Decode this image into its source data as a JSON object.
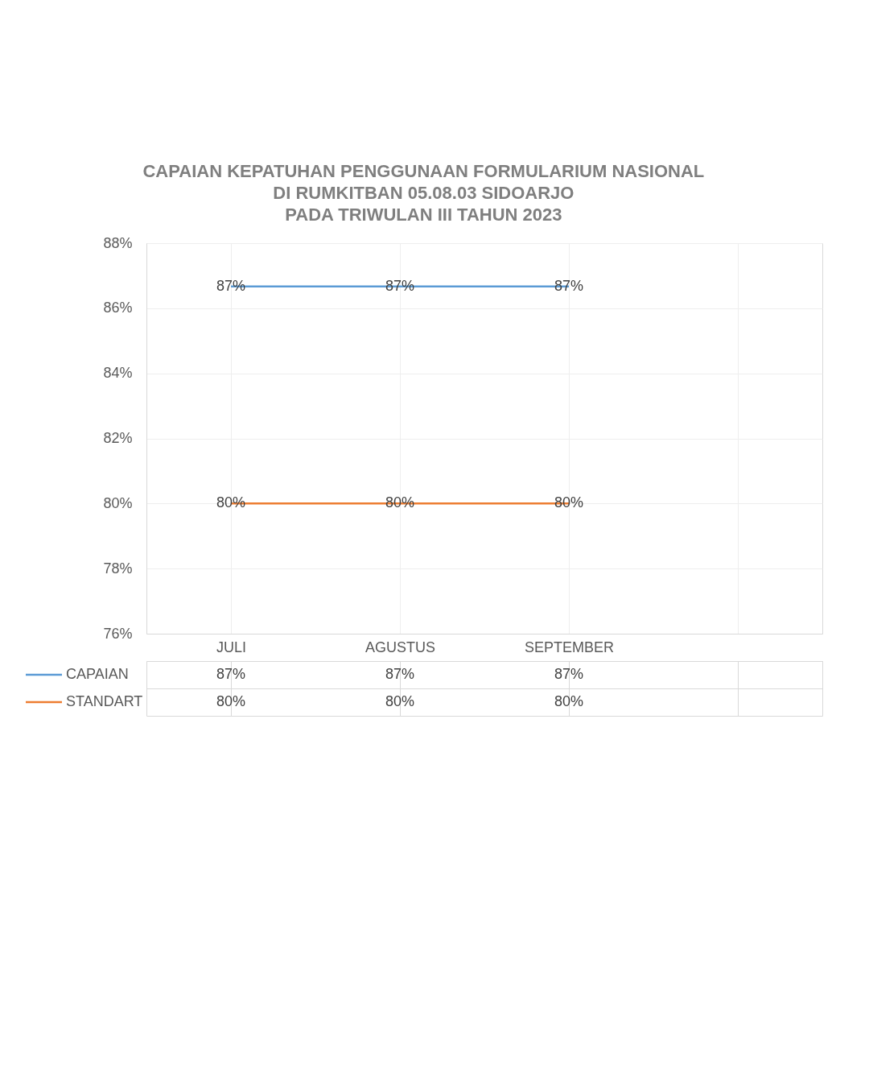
{
  "chart_data": {
    "type": "line",
    "title": "CAPAIAN KEPATUHAN PENGGUNAAN FORMULARIUM NASIONAL\nDI RUMKITBAN 05.08.03 SIDOARJO\nPADA TRIWULAN III TAHUN 2023",
    "categories": [
      "JULI",
      "AGUSTUS",
      "SEPTEMBER",
      null
    ],
    "series": [
      {
        "name": "CAPAIAN",
        "color": "#5b9bd5",
        "values": [
          86.67,
          86.67,
          86.67,
          null
        ],
        "value_labels": [
          "87%",
          "87%",
          "87%",
          null
        ]
      },
      {
        "name": "STANDART",
        "color": "#ed7d31",
        "values": [
          80,
          80,
          80,
          null
        ],
        "value_labels": [
          "80%",
          "80%",
          "80%",
          null
        ]
      }
    ],
    "ylim": [
      76,
      88
    ],
    "yticks": [
      {
        "value": 76,
        "label": "76%"
      },
      {
        "value": 78,
        "label": "78%"
      },
      {
        "value": 80,
        "label": "80%"
      },
      {
        "value": 82,
        "label": "82%"
      },
      {
        "value": 84,
        "label": "84%"
      },
      {
        "value": 86,
        "label": "86%"
      },
      {
        "value": 88,
        "label": "88%"
      }
    ],
    "grid": true,
    "legend": "bottom",
    "marker": "none",
    "line_style": "solid"
  }
}
